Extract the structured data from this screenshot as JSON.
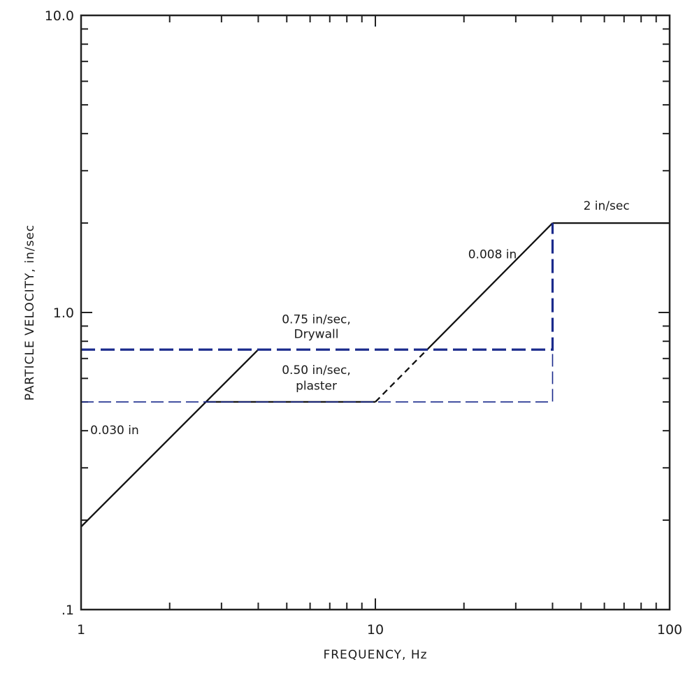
{
  "chart_data": {
    "type": "line",
    "title": "",
    "xlabel": "FREQUENCY, Hz",
    "ylabel": "PARTICLE VELOCITY, in/sec",
    "x_scale": "log",
    "y_scale": "log",
    "xlim": [
      1,
      100
    ],
    "ylim": [
      0.1,
      10
    ],
    "x_tick_labels": [
      {
        "value": 1,
        "label": "1"
      },
      {
        "value": 10,
        "label": "10"
      },
      {
        "value": 100,
        "label": "100"
      }
    ],
    "y_tick_labels": [
      {
        "value": 0.1,
        "label": ".1"
      },
      {
        "value": 1,
        "label": "1.0"
      },
      {
        "value": 10,
        "label": "10.0"
      }
    ],
    "grid": false,
    "series": [
      {
        "style": "solid",
        "color": "#111111",
        "points": [
          [
            1,
            0.19
          ],
          [
            4,
            0.75
          ]
        ]
      },
      {
        "style": "solid",
        "color": "#111111",
        "points": [
          [
            2.67,
            0.5
          ],
          [
            10,
            0.5
          ]
        ]
      },
      {
        "style": "dashed",
        "color": "#111111",
        "points": [
          [
            10,
            0.5
          ],
          [
            15,
            0.75
          ]
        ]
      },
      {
        "style": "solid",
        "color": "#111111",
        "points": [
          [
            15,
            0.75
          ],
          [
            40,
            2
          ]
        ]
      },
      {
        "style": "solid",
        "color": "#111111",
        "points": [
          [
            40,
            2
          ],
          [
            100,
            2
          ]
        ]
      },
      {
        "style": "dashed-thick",
        "color": "#1a2a8c",
        "points": [
          [
            1,
            0.75
          ],
          [
            40,
            0.75
          ],
          [
            40,
            2
          ]
        ]
      },
      {
        "style": "dashed-thin",
        "color": "#1a2a8c",
        "points": [
          [
            1,
            0.5
          ],
          [
            40,
            0.5
          ],
          [
            40,
            0.75
          ]
        ]
      }
    ],
    "annotations": [
      {
        "text": "0.030 in",
        "x": 1.3,
        "y": 0.39
      },
      {
        "text": "0.75 in/sec,",
        "x": 6.3,
        "y": 0.92
      },
      {
        "text": "Drywall",
        "x": 6.3,
        "y": 0.82
      },
      {
        "text": "0.50 in/sec,",
        "x": 6.3,
        "y": 0.62
      },
      {
        "text": "plaster",
        "x": 6.3,
        "y": 0.55
      },
      {
        "text": "0.008 in",
        "x": 25,
        "y": 1.52
      },
      {
        "text": "2 in/sec",
        "x": 61,
        "y": 2.22
      }
    ]
  }
}
